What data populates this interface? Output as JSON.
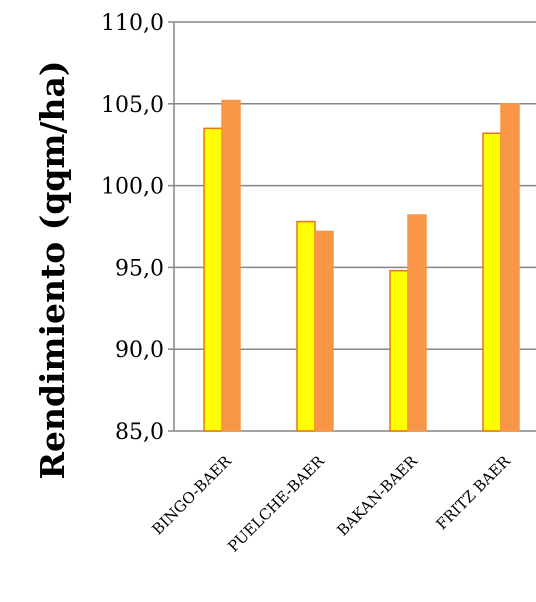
{
  "chart_data": {
    "type": "bar",
    "categories": [
      "BINGO-BAER",
      "PUELCHE-BAER",
      "BAKAN-BAER",
      "FRITZ BAER"
    ],
    "series": [
      {
        "values": [
          103.5,
          97.8,
          94.8,
          103.2
        ],
        "color": "#FFFF00",
        "stroke": "#E8751A"
      },
      {
        "values": [
          105.2,
          97.2,
          98.2,
          105.0
        ],
        "color": "#F79646",
        "stroke": "#F79646"
      }
    ],
    "ylabel": "Rendimiento (qqm/ha)",
    "ylim": [
      85,
      110
    ],
    "yticks": [
      "85,0",
      "90,0",
      "95,0",
      "100,0",
      "105,0",
      "110,0"
    ],
    "grid": true
  }
}
